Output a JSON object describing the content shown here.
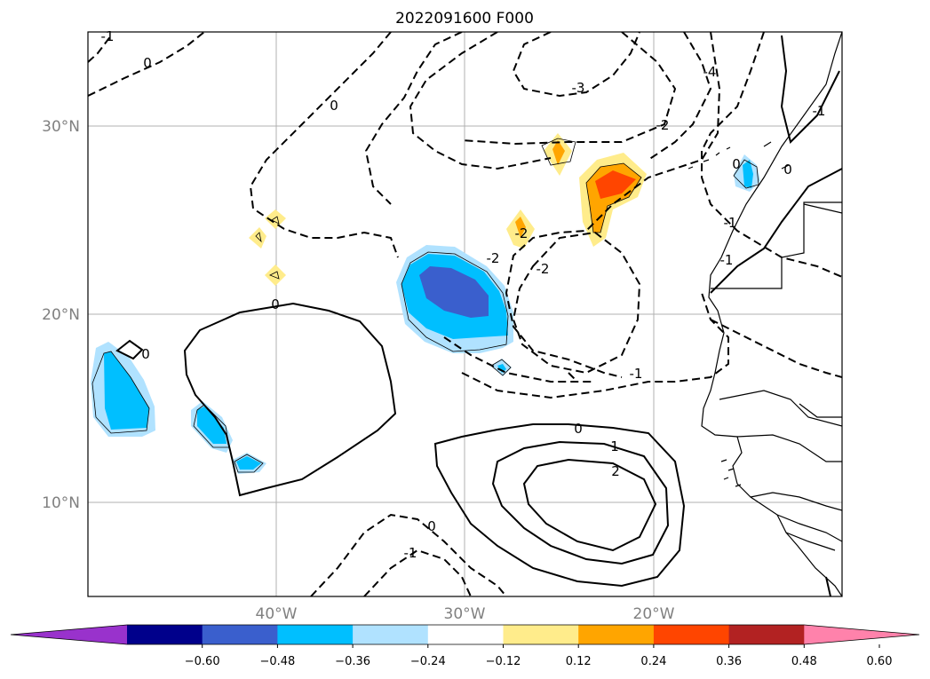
{
  "title": "2022091600 F000",
  "lat_labels": [
    "30°N",
    "20°N",
    "10°N"
  ],
  "lon_labels": [
    "40°W",
    "30°W",
    "20°W"
  ],
  "colorbar": {
    "ticks": [
      "−0.60",
      "−0.48",
      "−0.36",
      "−0.24",
      "−0.12",
      "0.12",
      "0.24",
      "0.36",
      "0.48",
      "0.60"
    ],
    "colors": [
      "#9932CC",
      "#00008B",
      "#3A5FCD",
      "#00BFFF",
      "#B0E2FF",
      "#FFFFFF",
      "#FFEC8B",
      "#FFA500",
      "#FF4500",
      "#B22222",
      "#FF82AB"
    ]
  },
  "contour_labels": [
    "-1",
    "0",
    "0",
    "-3",
    "-2",
    "-4",
    "-2",
    "-2",
    "-2",
    "0",
    "-1",
    "0",
    "1",
    "2",
    "0",
    "-1",
    "-1",
    "-1",
    "-1",
    "0",
    "0",
    "0"
  ],
  "chart_data": {
    "type": "heatmap",
    "title": "2022091600 F000",
    "x_range": [
      "50°W",
      "10°W"
    ],
    "y_range": [
      "5°N",
      "35°N"
    ],
    "x_ticks": [
      "40°W",
      "30°W",
      "20°W"
    ],
    "y_ticks": [
      "10°N",
      "20°N",
      "30°N"
    ],
    "color_levels": [
      -0.6,
      -0.48,
      -0.36,
      -0.24,
      -0.12,
      0.12,
      0.24,
      0.36,
      0.48,
      0.6
    ],
    "contour_levels": [
      -4,
      -3,
      -2,
      -1,
      0,
      1,
      2
    ],
    "grid": true
  }
}
